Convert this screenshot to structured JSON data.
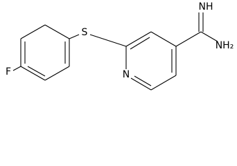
{
  "atoms": [
    {
      "label": "F"
    },
    {
      "label": "S"
    },
    {
      "label": "N"
    },
    {
      "label": "NH"
    },
    {
      "label": "NH₂"
    }
  ]
}
